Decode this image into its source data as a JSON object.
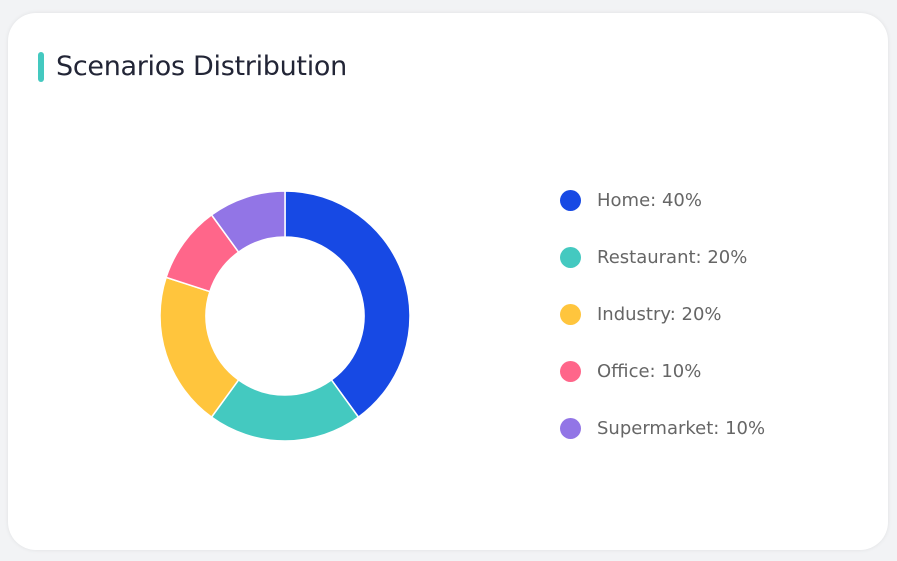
{
  "title": "Scenarios Distribution",
  "accent_color": "#44c9c0",
  "chart_data": {
    "type": "pie",
    "variant": "donut",
    "legend_position": "right",
    "series": [
      {
        "name": "Home",
        "value": 40,
        "color": "#1749e4",
        "label": "Home: 40%"
      },
      {
        "name": "Restaurant",
        "value": 20,
        "color": "#44c9c0",
        "label": "Restaurant: 20%"
      },
      {
        "name": "Industry",
        "value": 20,
        "color": "#ffc53d",
        "label": "Industry: 20%"
      },
      {
        "name": "Office",
        "value": 10,
        "color": "#ff668a",
        "label": "Office: 10%"
      },
      {
        "name": "Supermarket",
        "value": 10,
        "color": "#9275e6",
        "label": "Supermarket: 10%"
      }
    ]
  }
}
